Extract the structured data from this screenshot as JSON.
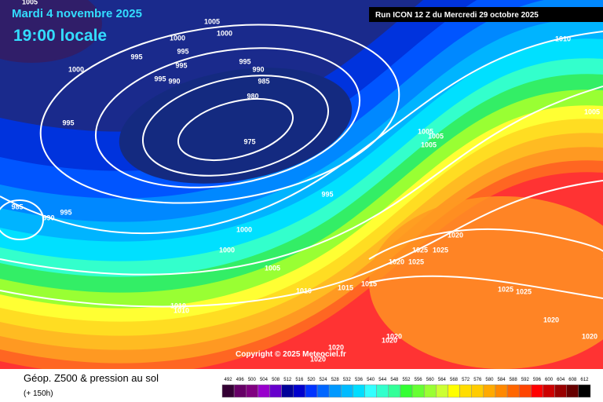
{
  "header": {
    "date": "Mardi 4 novembre 2025",
    "time": "19:00 locale",
    "run": "Run ICON 12 Z du Mercredi 29 octobre 2025"
  },
  "map": {
    "isobar_labels": [
      1005,
      1005,
      1000,
      1000,
      995,
      995,
      995,
      1000,
      995,
      990,
      995,
      990,
      985,
      980,
      995,
      975,
      1010,
      1005,
      1005,
      1005,
      1005,
      995,
      985,
      990,
      995,
      1000,
      1000,
      1020,
      1025,
      1025,
      1020,
      1025,
      1005,
      1010,
      1015,
      1015,
      1025,
      1025,
      1010,
      1010,
      1020,
      1020,
      1020,
      1020,
      1020,
      1020
    ]
  },
  "copyright": "Copyright © 2025 Meteociel.fr",
  "legend": {
    "title": "Géop. Z500 & pression au sol",
    "lead": "(+ 150h)",
    "scale": [
      492,
      496,
      500,
      504,
      508,
      512,
      516,
      520,
      524,
      528,
      532,
      536,
      540,
      544,
      548,
      552,
      556,
      560,
      564,
      568,
      572,
      576,
      580,
      584,
      588,
      592,
      596,
      600,
      604,
      608,
      612
    ]
  }
}
